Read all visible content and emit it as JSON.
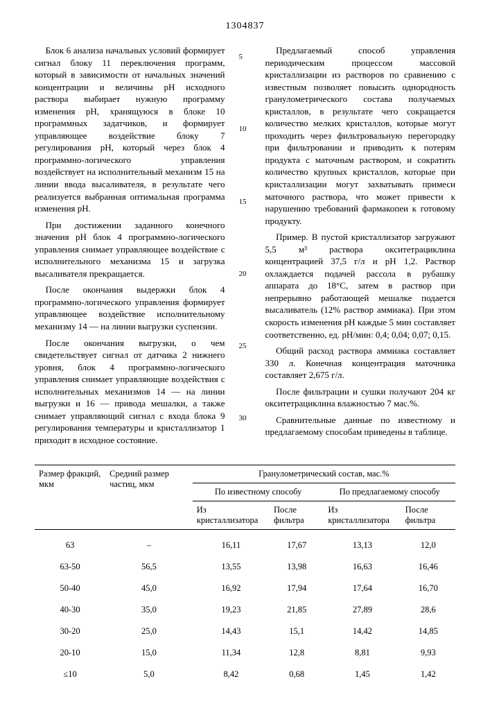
{
  "doc_number": "1304837",
  "left_column": [
    "Блок 6 анализа начальных условий формирует сигнал блоку 11 переключения программ, который в зависимости от начальных значений концентрации и величины pH исходного раствора выбирает нужную программу изменения pH, хранящуюся в блоке 10 программных задатчиков, и формирует управляющее воздействие блоку 7 регулирования pH, который через блок 4 программно-логического управления воздействует на исполнительный механизм 15 на линии ввода высаливателя, в результате чего реализуется выбранная оптимальная программа изменения pH.",
    "При достижении заданного конечного значения pH блок 4 программно-логического управления снимает управляющее воздействие с исполнительного механизма 15 и загрузка высаливателя прекращается.",
    "После окончания выдержки блок 4 программно-логического управления формирует управляющее воздействие исполнительному механизму 14 — на линии выгрузки суспензии.",
    "После окончания выгрузки, о чем свидетельствует сигнал от датчика 2 нижнего уровня, блок 4 программно-логического управления снимает управляющие воздействия с исполнительных механизмов 14 — на линии выгрузки и 16 — привода мешалки, а также снимает управляющий сигнал с входа блока 9 регулирования температуры и кристаллизатор 1 приходит в исходное состояние."
  ],
  "line_markers": [
    "5",
    "10",
    "15",
    "20",
    "25",
    "30"
  ],
  "right_column": [
    "Предлагаемый способ управления периодическим процессом массовой кристаллизации из растворов по сравнению с известным позволяет повысить однородность гранулометрического состава получаемых кристаллов, в результате чего сокращается количество мелких кристаллов, которые могут проходить через фильтровальную перегородку при фильтровании и приводить к потерям продукта с маточным раствором, и сократить количество крупных кристаллов, которые при кристаллизации могут захватывать примеси маточного раствора, что может привести к нарушению требований фармакопеи к готовому продукту.",
    "Пример. В пустой кристаллизатор загружают 5,5 м³ раствора окситетрациклина концентрацией 37,5 г/л и pH 1,2. Раствор охлаждается подачей рассола в рубашку аппарата до 18°С, затем в раствор при непрерывно работающей мешалке подается высаливатель (12% раствор аммиака). При этом скорость изменения pH каждые 5 мин составляет соответственно, ед. pH/мин: 0,4; 0,04; 0,07; 0,15.",
    "Общий расход раствора аммиака составляет 330 л. Конечная концентрация маточника составляет 2,675 г/л.",
    "После фильтрации и сушки получают 204 кг окситетрациклина влажностью 7 мас.%.",
    "Сравнительные данные по известному и предлагаемому способам приведены в таблице."
  ],
  "table": {
    "headers": {
      "c1": "Размер фракций, мкм",
      "c2": "Средний размер частиц, мкм",
      "c3": "Гранулометрический состав, мас.%",
      "c3a": "По известному способу",
      "c3b": "По предлагаемому способу",
      "s1": "Из кристаллизатора",
      "s2": "После фильтра",
      "s3": "Из кристаллизатора",
      "s4": "После фильтра"
    },
    "rows": [
      {
        "size": "63",
        "avg": "–",
        "v1": "16,11",
        "v2": "17,67",
        "v3": "13,13",
        "v4": "12,0"
      },
      {
        "size": "63-50",
        "avg": "56,5",
        "v1": "13,55",
        "v2": "13,98",
        "v3": "16,63",
        "v4": "16,46"
      },
      {
        "size": "50-40",
        "avg": "45,0",
        "v1": "16,92",
        "v2": "17,94",
        "v3": "17,64",
        "v4": "16,70"
      },
      {
        "size": "40-30",
        "avg": "35,0",
        "v1": "19,23",
        "v2": "21,85",
        "v3": "27,89",
        "v4": "28,6"
      },
      {
        "size": "30-20",
        "avg": "25,0",
        "v1": "14,43",
        "v2": "15,1",
        "v3": "14,42",
        "v4": "14,85"
      },
      {
        "size": "20-10",
        "avg": "15,0",
        "v1": "11,34",
        "v2": "12,8",
        "v3": "8,81",
        "v4": "9,93"
      },
      {
        "size": "≤10",
        "avg": "5,0",
        "v1": "8,42",
        "v2": "0,68",
        "v3": "1,45",
        "v4": "1,42"
      }
    ]
  }
}
